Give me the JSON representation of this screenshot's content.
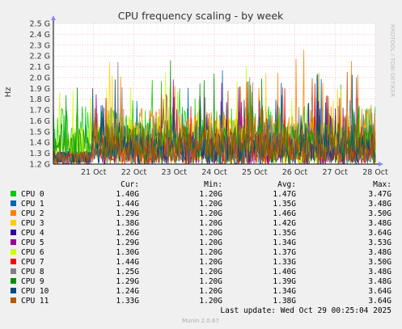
{
  "chart_data": {
    "type": "line",
    "title": "CPU frequency scaling - by week",
    "ylabel": "Hz",
    "ylim": [
      1.2,
      2.5
    ],
    "yticks": [
      1.2,
      1.3,
      1.4,
      1.5,
      1.6,
      1.7,
      1.8,
      1.9,
      2.0,
      2.1,
      2.2,
      2.3,
      2.4,
      2.5
    ],
    "ytick_labels": [
      "1.2 G",
      "1.3 G",
      "1.4 G",
      "1.5 G",
      "1.6 G",
      "1.7 G",
      "1.8 G",
      "1.9 G",
      "2.0 G",
      "2.1 G",
      "2.2 G",
      "2.3 G",
      "2.4 G",
      "2.5 G"
    ],
    "xlim": [
      0,
      8
    ],
    "xticks": [
      1,
      2,
      3,
      4,
      5,
      6,
      7,
      8
    ],
    "xtick_labels": [
      "21 Oct",
      "22 Oct",
      "23 Oct",
      "24 Oct",
      "25 Oct",
      "26 Oct",
      "27 Oct",
      "28 Oct"
    ],
    "grid": true,
    "side_label": "RRDTOOL / TOBI OETIKER",
    "legend_headers": {
      "cur": "Cur:",
      "min": "Min:",
      "avg": "Avg:",
      "max": "Max:"
    },
    "series": [
      {
        "name": "CPU 0",
        "color": "#00cc00",
        "cur": "1.40G",
        "min": "1.20G",
        "avg": "1.47G",
        "max": "3.47G"
      },
      {
        "name": "CPU 1",
        "color": "#0066b3",
        "cur": "1.44G",
        "min": "1.20G",
        "avg": "1.35G",
        "max": "3.48G"
      },
      {
        "name": "CPU 2",
        "color": "#ff8000",
        "cur": "1.29G",
        "min": "1.20G",
        "avg": "1.46G",
        "max": "3.50G"
      },
      {
        "name": "CPU 3",
        "color": "#ffcc00",
        "cur": "1.38G",
        "min": "1.20G",
        "avg": "1.42G",
        "max": "3.48G"
      },
      {
        "name": "CPU 4",
        "color": "#330099",
        "cur": "1.26G",
        "min": "1.20G",
        "avg": "1.35G",
        "max": "3.64G"
      },
      {
        "name": "CPU 5",
        "color": "#990099",
        "cur": "1.29G",
        "min": "1.20G",
        "avg": "1.34G",
        "max": "3.53G"
      },
      {
        "name": "CPU 6",
        "color": "#ccff00",
        "cur": "1.30G",
        "min": "1.20G",
        "avg": "1.37G",
        "max": "3.48G"
      },
      {
        "name": "CPU 7",
        "color": "#ff0000",
        "cur": "1.44G",
        "min": "1.20G",
        "avg": "1.33G",
        "max": "3.50G"
      },
      {
        "name": "CPU 8",
        "color": "#808080",
        "cur": "1.25G",
        "min": "1.20G",
        "avg": "1.40G",
        "max": "3.48G"
      },
      {
        "name": "CPU 9",
        "color": "#008f00",
        "cur": "1.29G",
        "min": "1.20G",
        "avg": "1.39G",
        "max": "3.48G"
      },
      {
        "name": "CPU 10",
        "color": "#00487d",
        "cur": "1.24G",
        "min": "1.20G",
        "avg": "1.34G",
        "max": "3.64G"
      },
      {
        "name": "CPU 11",
        "color": "#b35a00",
        "cur": "1.33G",
        "min": "1.20G",
        "avg": "1.38G",
        "max": "3.64G"
      }
    ]
  },
  "footer": {
    "last_update": "Last update: Wed Oct 29 00:25:04 2025",
    "version": "Munin 2.0.67"
  }
}
